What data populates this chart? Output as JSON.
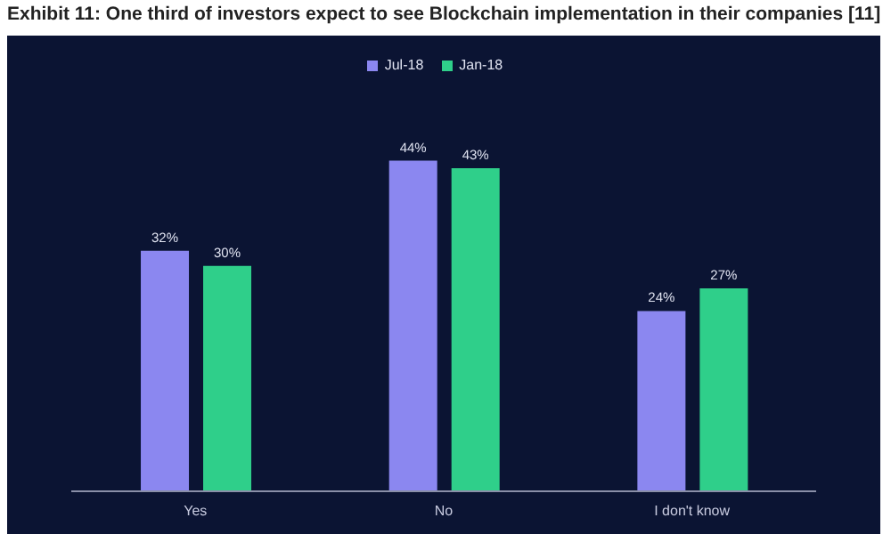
{
  "chart_data": {
    "type": "bar",
    "title": "Exhibit 11: One third of investors expect to see Blockchain implementation in their companies [11]",
    "categories": [
      "Yes",
      "No",
      "I don't know"
    ],
    "series": [
      {
        "name": "Jul-18",
        "color": "#8b87f0",
        "values": [
          32,
          44,
          24
        ],
        "value_labels": [
          "32%",
          "44%",
          "24%"
        ]
      },
      {
        "name": "Jan-18",
        "color": "#2fcf8a",
        "values": [
          30,
          43,
          27
        ],
        "value_labels": [
          "30%",
          "43%",
          "27%"
        ]
      }
    ],
    "legend": "top",
    "grid": false
  }
}
